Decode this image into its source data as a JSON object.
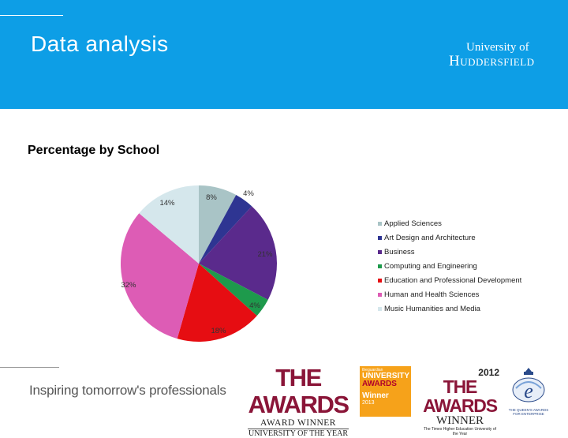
{
  "header": {
    "title": "Data analysis",
    "logo_top": "University of",
    "logo_bottom": "Huddersfield"
  },
  "chart_data": {
    "type": "pie",
    "title": "Percentage by School",
    "start_angle_deg": 0,
    "slices": [
      {
        "name": "Applied Sciences",
        "value": 8,
        "label": "8%",
        "color": "#a9c4c6"
      },
      {
        "name": "Art Design and Architecture",
        "value": 4,
        "label": "4%",
        "color": "#2e3592"
      },
      {
        "name": "Business",
        "value": 21,
        "label": "21%",
        "color": "#5a2a8c"
      },
      {
        "name": "Computing and Engineering",
        "value": 4,
        "label": "4%",
        "color": "#1e9a4c"
      },
      {
        "name": "Education and Professional Development",
        "value": 18,
        "label": "18%",
        "color": "#e60d12"
      },
      {
        "name": "Human and Health Sciences",
        "value": 32,
        "label": "32%",
        "color": "#dd5cb5"
      },
      {
        "name": "Music Humanities and Media",
        "value": 14,
        "label": "14%",
        "color": "#d5e7ec"
      }
    ],
    "legend_position": "right"
  },
  "footer": {
    "tagline": "Inspiring tomorrow's professionals"
  },
  "awards": {
    "the_awards_1": {
      "big": "THE AWARDS",
      "line1": "AWARD WINNER",
      "line2": "UNIVERSITY OF THE YEAR"
    },
    "guardian": {
      "small": "theguardian",
      "line1": "UNIVERSITY",
      "line2": "AWARDS",
      "line3": "Winner",
      "year": "2013"
    },
    "the_awards_2": {
      "year": "2012",
      "big": "THE AWARDS",
      "line1": "WINNER",
      "line2": "The Times Higher Education University of the Year"
    },
    "queens": {
      "letter": "e",
      "line": "THE QUEEN'S AWARDS FOR ENTERPRISE"
    }
  }
}
